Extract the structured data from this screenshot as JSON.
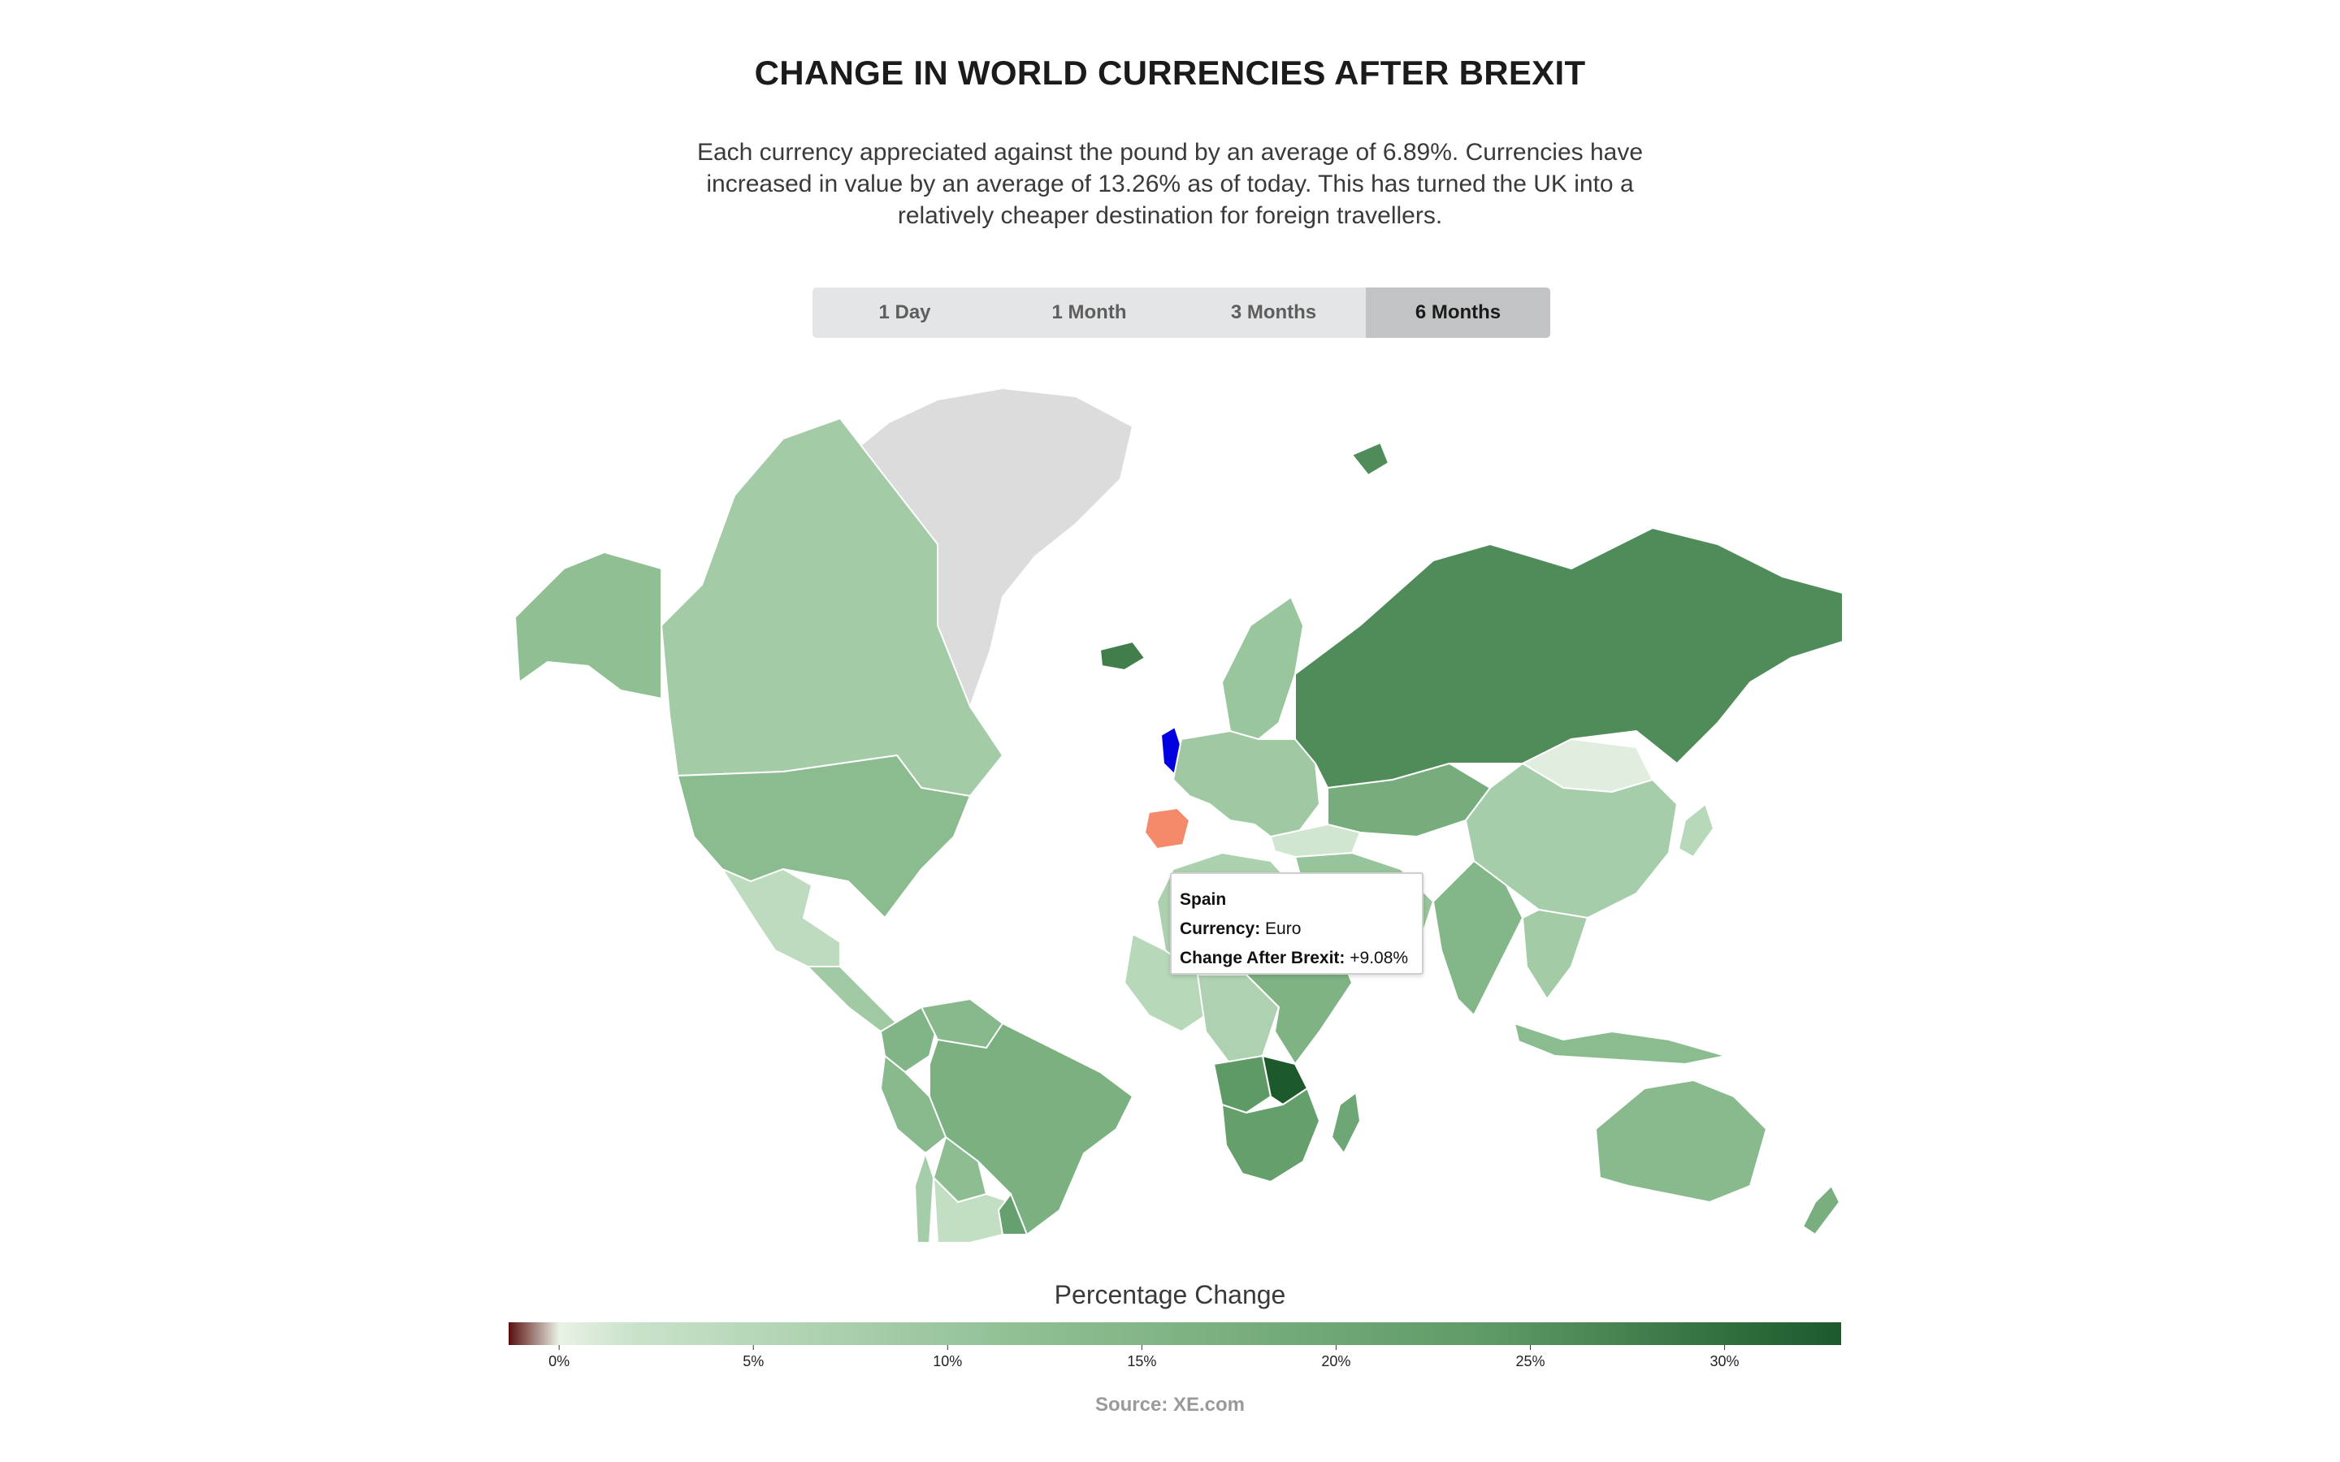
{
  "header": {
    "title": "CHANGE IN WORLD CURRENCIES AFTER BREXIT",
    "subtitle": "Each currency appreciated against the pound by an average of 6.89%. Currencies have increased in value by an average of 13.26% as of today. This has turned the UK into a relatively cheaper destination for foreign travellers."
  },
  "tabs": [
    {
      "label": "1 Day",
      "active": false
    },
    {
      "label": "1 Month",
      "active": false
    },
    {
      "label": "3 Months",
      "active": false
    },
    {
      "label": "6 Months",
      "active": true
    }
  ],
  "tooltip": {
    "country": "Spain",
    "currency_label": "Currency:",
    "currency": "Euro",
    "change_label": "Change After Brexit:",
    "change": "+9.08%"
  },
  "legend": {
    "title": "Percentage Change",
    "ticks": [
      "0%",
      "5%",
      "10%",
      "15%",
      "20%",
      "25%",
      "30%"
    ],
    "tick_values": [
      0,
      5,
      10,
      15,
      20,
      25,
      30
    ],
    "min": -1.3,
    "max": 33,
    "colors": {
      "negative": "#5a0f0f",
      "zero": "#e9f2e6",
      "low": "#c8e2c9",
      "mid": "#8fbf93",
      "high": "#5e9a66",
      "max": "#1c5a2c"
    }
  },
  "map": {
    "colors": {
      "no_data": "#dcdcdc",
      "uk": "#0000e0",
      "selected": "#f58a6b",
      "border": "#ffffff"
    },
    "regions": [
      {
        "name": "Greenland",
        "value": null
      },
      {
        "name": "Canada",
        "value": 8.5
      },
      {
        "name": "Alaska",
        "value": 12.0
      },
      {
        "name": "United States",
        "value": 13.0
      },
      {
        "name": "Mexico",
        "value": 4.0
      },
      {
        "name": "Central America",
        "value": 9.0
      },
      {
        "name": "Brazil",
        "value": 17.0
      },
      {
        "name": "Colombia",
        "value": 15.5
      },
      {
        "name": "Venezuela",
        "value": 14.0
      },
      {
        "name": "Peru",
        "value": 13.5
      },
      {
        "name": "Bolivia",
        "value": 12.5
      },
      {
        "name": "Argentina",
        "value": 3.0
      },
      {
        "name": "Chile",
        "value": 8.0
      },
      {
        "name": "Uruguay",
        "value": 22.0
      },
      {
        "name": "Iceland",
        "value": 28.0
      },
      {
        "name": "United Kingdom",
        "value": null
      },
      {
        "name": "Spain",
        "value": 9.08
      },
      {
        "name": "Europe",
        "value": 9.08
      },
      {
        "name": "Scandinavia",
        "value": 10.0
      },
      {
        "name": "Russia",
        "value": 26.0
      },
      {
        "name": "Kazakhstan",
        "value": 18.0
      },
      {
        "name": "Mongolia",
        "value": 0.5
      },
      {
        "name": "China",
        "value": 8.0
      },
      {
        "name": "India",
        "value": 15.0
      },
      {
        "name": "Southeast Asia",
        "value": 8.5
      },
      {
        "name": "Indonesia",
        "value": 13.0
      },
      {
        "name": "Japan",
        "value": 5.0
      },
      {
        "name": "Middle East",
        "value": 10.5
      },
      {
        "name": "Turkey",
        "value": 1.5
      },
      {
        "name": "North Africa",
        "value": 7.0
      },
      {
        "name": "West Africa",
        "value": 5.0
      },
      {
        "name": "Central Africa",
        "value": 6.5
      },
      {
        "name": "East Africa",
        "value": 16.0
      },
      {
        "name": "Angola",
        "value": 24.0
      },
      {
        "name": "Zambia",
        "value": 33.0
      },
      {
        "name": "Southern Africa",
        "value": 22.5
      },
      {
        "name": "Madagascar",
        "value": 20.0
      },
      {
        "name": "Australia",
        "value": 13.5
      },
      {
        "name": "New Zealand",
        "value": 17.5
      },
      {
        "name": "Svalbard",
        "value": 26.0
      }
    ]
  },
  "source": "Source: XE.com"
}
